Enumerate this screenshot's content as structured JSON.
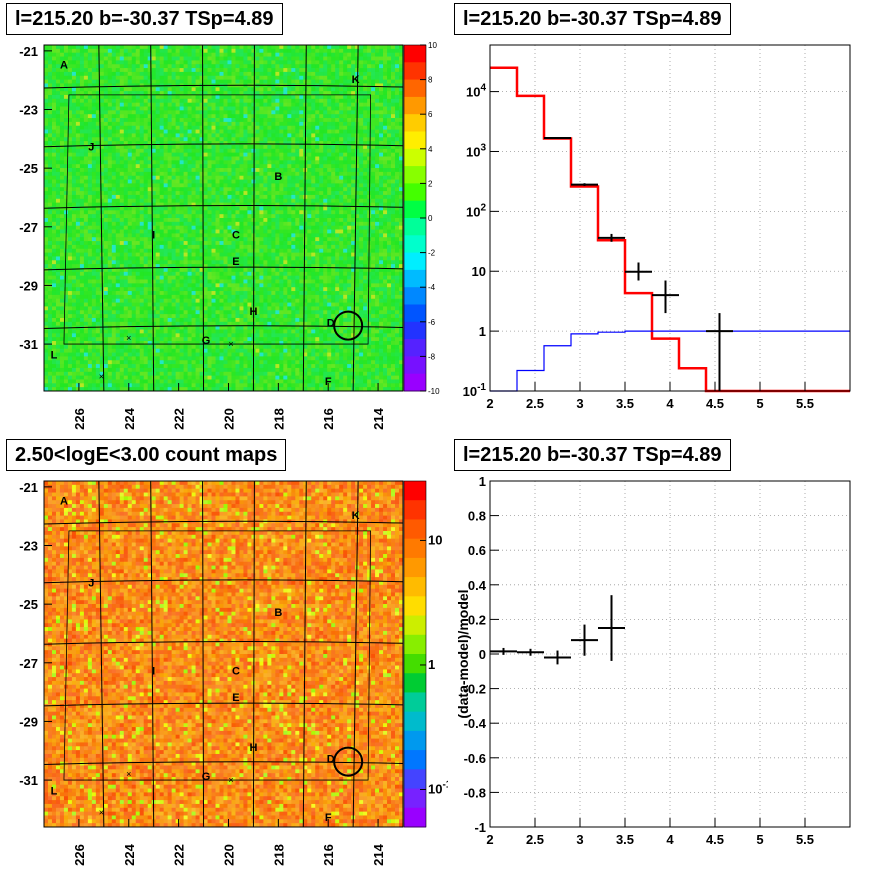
{
  "panels": {
    "tl": {
      "title": "l=215.20 b=-30.37 TSp=4.89"
    },
    "tr": {
      "title": "l=215.20 b=-30.37 TSp=4.89"
    },
    "bl": {
      "title": "2.50<logE<3.00 count maps"
    },
    "br": {
      "title": "l=215.20 b=-30.37 TSp=4.89"
    }
  },
  "chart_data": [
    {
      "type": "heatmap",
      "title": "l=215.20 b=-30.37 TSp=4.89",
      "x_ticks": [
        "226",
        "224",
        "222",
        "220",
        "218",
        "216",
        "214"
      ],
      "y_ticks": [
        "-21",
        "-23",
        "-25",
        "-27",
        "-29",
        "-31"
      ],
      "xlim": [
        227.4,
        213.0
      ],
      "ylim": [
        -32.6,
        -20.8
      ],
      "colorbar": {
        "range": [
          -10,
          10
        ],
        "ticks": [
          "10",
          "8",
          "6",
          "4",
          "2",
          "0",
          "-2",
          "-4",
          "-6",
          "-8",
          "-10"
        ]
      },
      "source_labels": [
        {
          "name": "A",
          "l": 226.6,
          "b": -21.6
        },
        {
          "name": "K",
          "l": 214.9,
          "b": -22.1
        },
        {
          "name": "J",
          "l": 225.5,
          "b": -24.4
        },
        {
          "name": "B",
          "l": 218.0,
          "b": -25.4
        },
        {
          "name": "I",
          "l": 223.0,
          "b": -27.4
        },
        {
          "name": "C",
          "l": 219.7,
          "b": -27.4
        },
        {
          "name": "E",
          "l": 219.7,
          "b": -28.3
        },
        {
          "name": "H",
          "l": 219.0,
          "b": -30.0
        },
        {
          "name": "D",
          "l": 215.9,
          "b": -30.4
        },
        {
          "name": "G",
          "l": 220.9,
          "b": -31.0
        },
        {
          "name": "L",
          "l": 227.0,
          "b": -31.5
        },
        {
          "name": "F",
          "l": 216.0,
          "b": -32.4
        }
      ],
      "target_circle": {
        "l": 215.2,
        "b": -30.37
      }
    },
    {
      "type": "line",
      "title": "l=215.20 b=-30.37 TSp=4.89",
      "x_scale": "linear",
      "y_scale": "log",
      "xlim": [
        2.0,
        6.0
      ],
      "ylim": [
        0.1,
        60000
      ],
      "x_ticks": [
        "2",
        "2.5",
        "3",
        "3.5",
        "4",
        "4.5",
        "5",
        "5.5"
      ],
      "y_ticks": [
        "10^4",
        "10^3",
        "10^2",
        "10",
        "1",
        "10^-1"
      ],
      "series": [
        {
          "color": "#ff0000",
          "step_edges": [
            2.0,
            2.3,
            2.6,
            2.9,
            3.2,
            3.5,
            3.8,
            4.1,
            4.4,
            6.0
          ],
          "values": [
            25000,
            8500,
            1650,
            260,
            33,
            4.3,
            0.75,
            0.24,
            0.1
          ]
        },
        {
          "color": "#0000ff",
          "step_edges": [
            2.0,
            2.3,
            2.6,
            2.9,
            3.2,
            3.5,
            6.0
          ],
          "values": [
            0.1,
            0.22,
            0.57,
            0.9,
            0.96,
            1.0
          ]
        },
        {
          "color": "#000000",
          "points": [
            {
              "x": 2.75,
              "xerr": 0.15,
              "y": 1680,
              "ylo": 1640,
              "yhi": 1720
            },
            {
              "x": 3.05,
              "xerr": 0.15,
              "y": 280,
              "ylo": 265,
              "yhi": 295
            },
            {
              "x": 3.35,
              "xerr": 0.15,
              "y": 36,
              "ylo": 31,
              "yhi": 42
            },
            {
              "x": 3.65,
              "xerr": 0.15,
              "y": 9.8,
              "ylo": 7,
              "yhi": 14
            },
            {
              "x": 3.95,
              "xerr": 0.15,
              "y": 4,
              "ylo": 2,
              "yhi": 7
            },
            {
              "x": 4.55,
              "xerr": 0.15,
              "y": 1,
              "ylo": 0.1,
              "yhi": 2
            }
          ]
        }
      ]
    },
    {
      "type": "heatmap",
      "title": "2.50<logE<3.00 count maps",
      "x_ticks": [
        "226",
        "224",
        "222",
        "220",
        "218",
        "216",
        "214"
      ],
      "y_ticks": [
        "-21",
        "-23",
        "-25",
        "-27",
        "-29",
        "-31"
      ],
      "xlim": [
        227.4,
        213.0
      ],
      "ylim": [
        -32.6,
        -20.8
      ],
      "colorbar": {
        "scale": "log",
        "range": [
          0.05,
          30
        ],
        "ticks": [
          "10",
          "1",
          "10^-1"
        ]
      },
      "source_labels": [
        {
          "name": "A",
          "l": 226.6,
          "b": -21.6
        },
        {
          "name": "K",
          "l": 214.9,
          "b": -22.1
        },
        {
          "name": "J",
          "l": 225.5,
          "b": -24.4
        },
        {
          "name": "B",
          "l": 218.0,
          "b": -25.4
        },
        {
          "name": "I",
          "l": 223.0,
          "b": -27.4
        },
        {
          "name": "C",
          "l": 219.7,
          "b": -27.4
        },
        {
          "name": "E",
          "l": 219.7,
          "b": -28.3
        },
        {
          "name": "H",
          "l": 219.0,
          "b": -30.0
        },
        {
          "name": "D",
          "l": 215.9,
          "b": -30.4
        },
        {
          "name": "G",
          "l": 220.9,
          "b": -31.0
        },
        {
          "name": "L",
          "l": 227.0,
          "b": -31.5
        },
        {
          "name": "F",
          "l": 216.0,
          "b": -32.4
        }
      ],
      "target_circle": {
        "l": 215.2,
        "b": -30.37
      }
    },
    {
      "type": "scatter",
      "title": "l=215.20 b=-30.37 TSp=4.89",
      "ylabel": "(data-model)/model",
      "xlim": [
        2.0,
        6.0
      ],
      "ylim": [
        -1.0,
        1.0
      ],
      "x_ticks": [
        "2",
        "2.5",
        "3",
        "3.5",
        "4",
        "4.5",
        "5",
        "5.5"
      ],
      "y_ticks": [
        "1",
        "0.8",
        "0.6",
        "0.4",
        "0.2",
        "0",
        "-0.2",
        "-0.4",
        "-0.6",
        "-0.8",
        "-1"
      ],
      "points": [
        {
          "x": 2.15,
          "xerr": 0.15,
          "y": 0.015,
          "yerr": 0.02
        },
        {
          "x": 2.45,
          "xerr": 0.15,
          "y": 0.01,
          "yerr": 0.02
        },
        {
          "x": 2.75,
          "xerr": 0.15,
          "y": -0.02,
          "yerr": 0.04
        },
        {
          "x": 3.05,
          "xerr": 0.15,
          "y": 0.08,
          "yerr": 0.09
        },
        {
          "x": 3.35,
          "xerr": 0.15,
          "y": 0.15,
          "yerr": 0.19
        }
      ]
    }
  ]
}
